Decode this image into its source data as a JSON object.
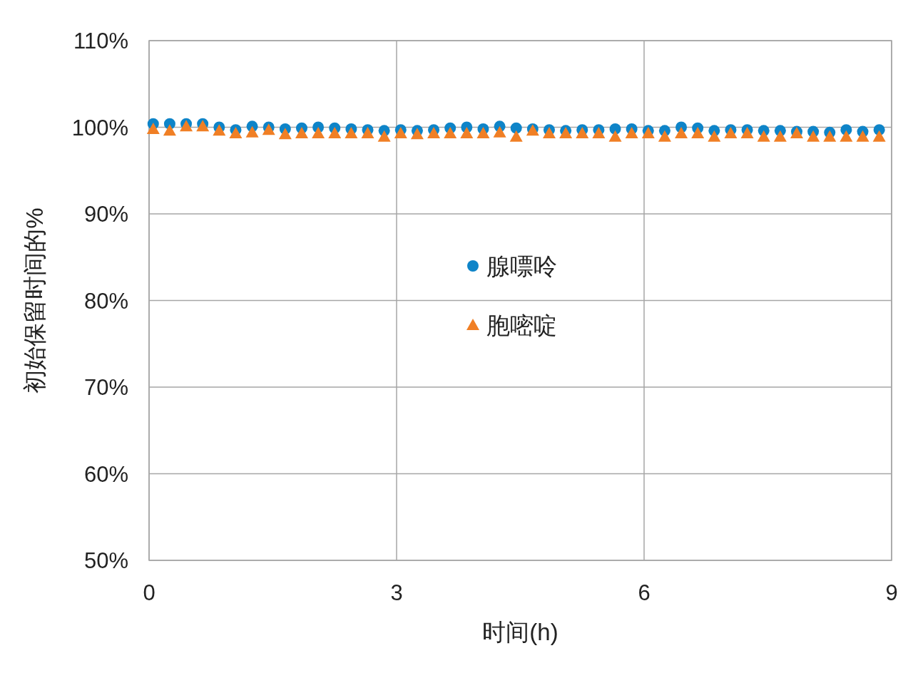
{
  "chart_data": {
    "type": "scatter",
    "xlabel": "时间(h)",
    "ylabel": "初始保留时间的%",
    "xlim": [
      0,
      9
    ],
    "xticks": [
      0,
      3,
      6,
      9
    ],
    "ylim": [
      50,
      110
    ],
    "yticks": [
      {
        "value": 50,
        "label": "50%"
      },
      {
        "value": 60,
        "label": "60%"
      },
      {
        "value": 70,
        "label": "70%"
      },
      {
        "value": 80,
        "label": "80%"
      },
      {
        "value": 90,
        "label": "90%"
      },
      {
        "value": 100,
        "label": "100%"
      },
      {
        "value": 110,
        "label": "110%"
      }
    ],
    "grid": true,
    "legend": "center",
    "x": [
      0.05,
      0.25,
      0.45,
      0.65,
      0.85,
      1.05,
      1.25,
      1.45,
      1.65,
      1.85,
      2.05,
      2.25,
      2.45,
      2.65,
      2.85,
      3.05,
      3.25,
      3.45,
      3.65,
      3.85,
      4.05,
      4.25,
      4.45,
      4.65,
      4.85,
      5.05,
      5.25,
      5.45,
      5.65,
      5.85,
      6.05,
      6.25,
      6.45,
      6.65,
      6.85,
      7.05,
      7.25,
      7.45,
      7.65,
      7.85,
      8.05,
      8.25,
      8.45,
      8.65,
      8.85
    ],
    "series": [
      {
        "name": "腺嘌呤",
        "color": "#0e84c8",
        "marker": "circle",
        "values": [
          100.4,
          100.4,
          100.4,
          100.4,
          100.0,
          99.7,
          100.1,
          100.0,
          99.8,
          99.9,
          100.0,
          99.9,
          99.8,
          99.7,
          99.6,
          99.7,
          99.6,
          99.7,
          99.9,
          100.0,
          99.8,
          100.1,
          99.9,
          99.8,
          99.7,
          99.6,
          99.7,
          99.7,
          99.8,
          99.8,
          99.6,
          99.6,
          100.0,
          99.9,
          99.6,
          99.7,
          99.7,
          99.6,
          99.6,
          99.5,
          99.5,
          99.4,
          99.7,
          99.5,
          99.7
        ]
      },
      {
        "name": "胞嘧啶",
        "color": "#f07f25",
        "marker": "triangle",
        "values": [
          99.8,
          99.6,
          100.1,
          100.1,
          99.6,
          99.3,
          99.4,
          99.7,
          99.2,
          99.3,
          99.3,
          99.3,
          99.3,
          99.3,
          98.9,
          99.3,
          99.2,
          99.3,
          99.3,
          99.3,
          99.3,
          99.4,
          98.9,
          99.6,
          99.3,
          99.3,
          99.3,
          99.3,
          98.9,
          99.3,
          99.3,
          98.9,
          99.3,
          99.3,
          98.9,
          99.3,
          99.3,
          98.9,
          98.9,
          99.3,
          98.9,
          98.9,
          98.9,
          98.9,
          98.9
        ]
      }
    ]
  }
}
